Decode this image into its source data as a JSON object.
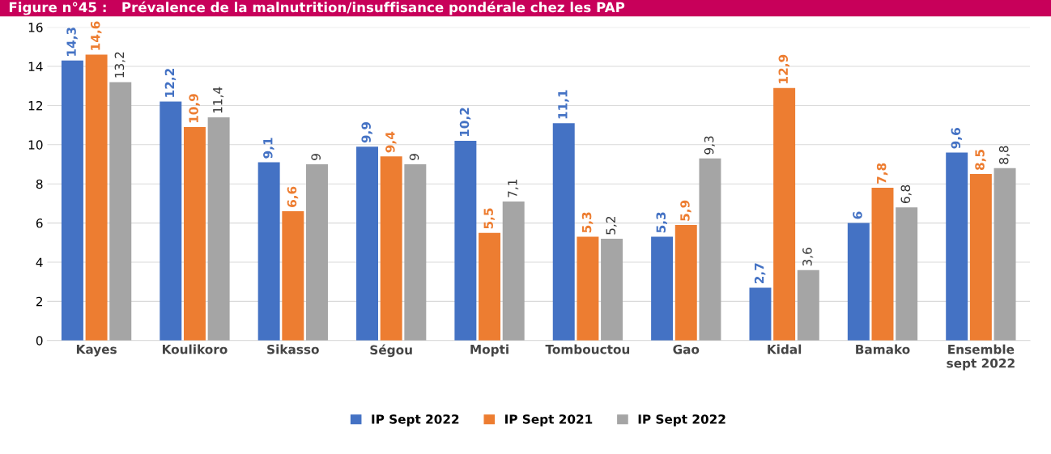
{
  "chart_data": {
    "type": "bar",
    "title": "Figure n°45 :   Prévalence de la malnutrition/insuffisance pondérale chez les PAP",
    "categories": [
      "Kayes",
      "Koulikoro",
      "Sikasso",
      "Ségou",
      "Mopti",
      "Tombouctou",
      "Gao",
      "Kidal",
      "Bamako",
      "Ensemble\nsept 2022"
    ],
    "series": [
      {
        "name": "IP Sept 2022",
        "color": "#4472c4",
        "values": [
          14.3,
          12.2,
          9.1,
          9.9,
          10.2,
          11.1,
          5.3,
          2.7,
          6,
          9.6
        ],
        "value_labels": [
          "14,3",
          "12,2",
          "9,1",
          "9,9",
          "10,2",
          "11,1",
          "5,3",
          "2,7",
          "6",
          "9,6"
        ]
      },
      {
        "name": "IP Sept 2021",
        "color": "#ed7d31",
        "values": [
          14.6,
          10.9,
          6.6,
          9.4,
          5.5,
          5.3,
          5.9,
          12.9,
          7.8,
          8.5
        ],
        "value_labels": [
          "14,6",
          "10,9",
          "6,6",
          "9,4",
          "5,5",
          "5,3",
          "5,9",
          "12,9",
          "7,8",
          "8,5"
        ]
      },
      {
        "name": "IP Sept 2022",
        "color": "#a5a5a5",
        "values": [
          13.2,
          11.4,
          9,
          9,
          7.1,
          5.2,
          9.3,
          3.6,
          6.8,
          8.8
        ],
        "value_labels": [
          "13,2",
          "11,4",
          "9",
          "9",
          "7,1",
          "5,2",
          "9,3",
          "3,6",
          "6,8",
          "8,8"
        ]
      }
    ],
    "ylim": [
      0,
      16
    ],
    "yticks": [
      0,
      2,
      4,
      6,
      8,
      10,
      12,
      14,
      16
    ],
    "grid": "y",
    "legend": "bottom"
  }
}
